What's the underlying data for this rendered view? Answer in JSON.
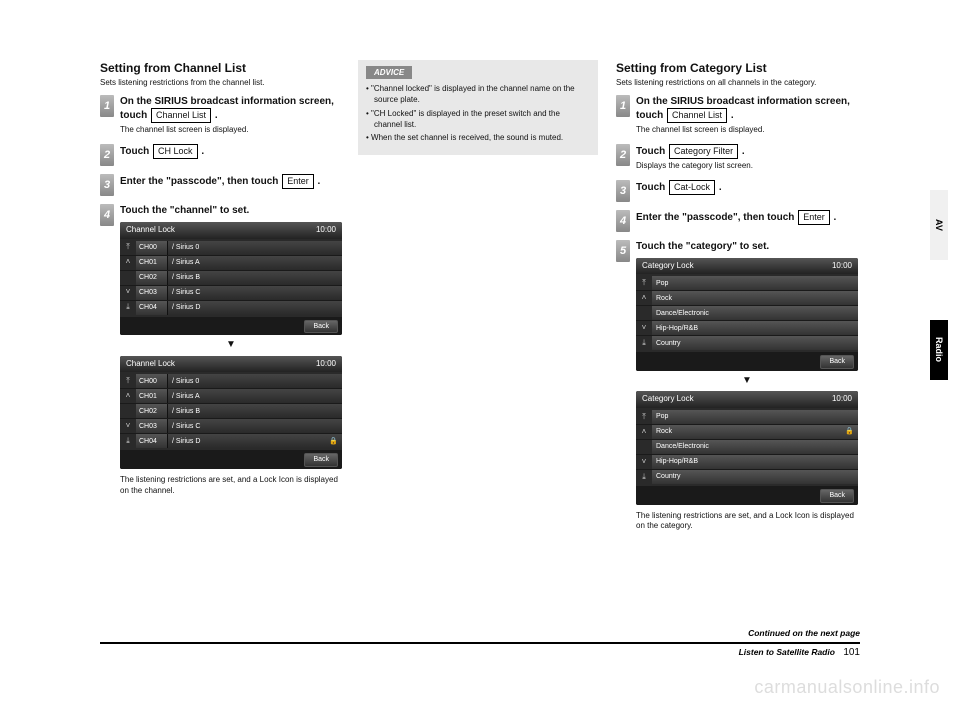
{
  "left": {
    "title": "Setting from Channel List",
    "subtitle": "Sets listening restrictions from the channel list.",
    "steps": {
      "s1a": "On the SIRIUS broadcast information screen, touch",
      "s1btn": "Channel List",
      "s1note": "The channel list screen is displayed.",
      "s2a": "Touch",
      "s2btn": "CH Lock",
      "s3a": "Enter the \"passcode\", then touch",
      "s3btn": "Enter",
      "s4a": "Touch the \"channel\" to set."
    },
    "mock_title": "Channel Lock",
    "mock_time": "10:00",
    "rows": [
      {
        "ch": "CH00",
        "name": "/ Sirius 0",
        "arrow": "⤒"
      },
      {
        "ch": "CH01",
        "name": "/ Sirius A",
        "arrow": "˄"
      },
      {
        "ch": "CH02",
        "name": "/ Sirius B",
        "arrow": ""
      },
      {
        "ch": "CH03",
        "name": "/ Sirius C",
        "arrow": "˅"
      },
      {
        "ch": "CH04",
        "name": "/ Sirius D",
        "arrow": "⤓"
      }
    ],
    "back": "Back",
    "result": "The listening restrictions are set, and a Lock Icon is displayed on the channel."
  },
  "advice": {
    "label": "ADVICE",
    "b1": "• \"Channel locked\" is displayed in the channel name on the source plate.",
    "b2": "• \"CH Locked\" is displayed in the preset switch and the channel list.",
    "b3": "• When the set channel is received, the sound is muted."
  },
  "right": {
    "title": "Setting from Category List",
    "subtitle": "Sets listening restrictions on all channels in the category.",
    "steps": {
      "s1a": "On the SIRIUS broadcast information screen, touch",
      "s1btn": "Channel List",
      "s1note": "The channel list screen is displayed.",
      "s2a": "Touch",
      "s2btn": "Category Filter",
      "s2note": "Displays the category list screen.",
      "s3a": "Touch",
      "s3btn": "Cat-Lock",
      "s4a": "Enter the \"passcode\", then touch",
      "s4btn": "Enter",
      "s5a": "Touch the \"category\" to set."
    },
    "mock_title": "Category Lock",
    "mock_time": "10:00",
    "rows": [
      {
        "name": "Pop",
        "arrow": "⤒"
      },
      {
        "name": "Rock",
        "arrow": "˄"
      },
      {
        "name": "Dance/Electronic",
        "arrow": ""
      },
      {
        "name": "Hip-Hop/R&B",
        "arrow": "˅"
      },
      {
        "name": "Country",
        "arrow": "⤓"
      }
    ],
    "back": "Back",
    "result": "The listening restrictions are set, and a Lock Icon is displayed on the category."
  },
  "side": {
    "av": "AV",
    "radio": "Radio"
  },
  "footer": {
    "continued": "Continued on the next page",
    "section": "Listen to Satellite Radio",
    "page": "101"
  },
  "watermark": "carmanualsonline.info"
}
